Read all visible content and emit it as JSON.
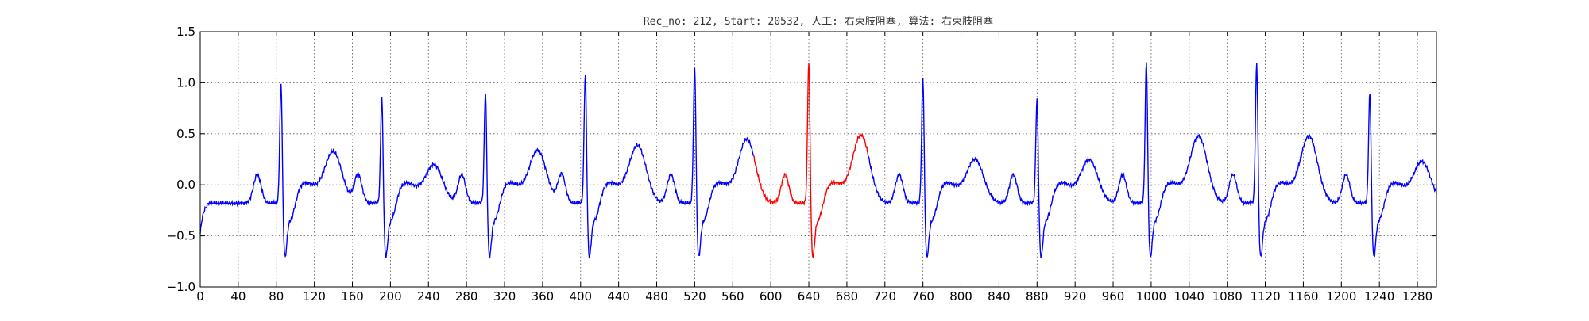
{
  "chart_data": {
    "type": "line",
    "title": "Rec_no: 212, Start: 20532, 人工: 右束肢阻塞, 算法: 右束肢阻塞",
    "xlabel": "",
    "ylabel": "",
    "xlim": [
      0,
      1300
    ],
    "ylim": [
      -1.0,
      1.5
    ],
    "grid": true,
    "yticks": [
      -1.0,
      -0.5,
      0.0,
      0.5,
      1.0,
      1.5
    ],
    "yticklabels": [
      "−1.0",
      "−0.5",
      "0.0",
      "0.5",
      "1.0",
      "1.5"
    ],
    "xticks": [
      0,
      40,
      80,
      120,
      160,
      200,
      240,
      280,
      320,
      360,
      400,
      440,
      480,
      520,
      560,
      600,
      640,
      680,
      720,
      760,
      800,
      840,
      880,
      920,
      960,
      1000,
      1040,
      1080,
      1120,
      1160,
      1200,
      1240,
      1280
    ],
    "xticklabels": [
      "0",
      "40",
      "80",
      "120",
      "160",
      "200",
      "240",
      "280",
      "320",
      "360",
      "400",
      "440",
      "480",
      "520",
      "560",
      "600",
      "640",
      "680",
      "720",
      "760",
      "800",
      "840",
      "880",
      "920",
      "960",
      "1000",
      "1040",
      "1080",
      "1120",
      "1160",
      "1200",
      "1240",
      "1280"
    ],
    "signal_color": "#0000ff",
    "highlight_color": "#ff0000",
    "highlight_range": [
      582,
      702
    ],
    "beats": [
      {
        "r": 85,
        "a": 1.25,
        "t": 0.3
      },
      {
        "r": 191,
        "a": 1.1,
        "t": 0.17
      },
      {
        "r": 300,
        "a": 1.15,
        "t": 0.31
      },
      {
        "r": 405,
        "a": 1.33,
        "t": 0.36
      },
      {
        "r": 520,
        "a": 1.4,
        "t": 0.42
      },
      {
        "r": 640,
        "a": 1.45,
        "t": 0.46
      },
      {
        "r": 760,
        "a": 1.3,
        "t": 0.22
      },
      {
        "r": 880,
        "a": 1.08,
        "t": 0.22
      },
      {
        "r": 995,
        "a": 1.45,
        "t": 0.45
      },
      {
        "r": 1111,
        "a": 1.43,
        "t": 0.45
      },
      {
        "r": 1230,
        "a": 1.15,
        "t": 0.2
      }
    ],
    "x_end": 1300
  }
}
